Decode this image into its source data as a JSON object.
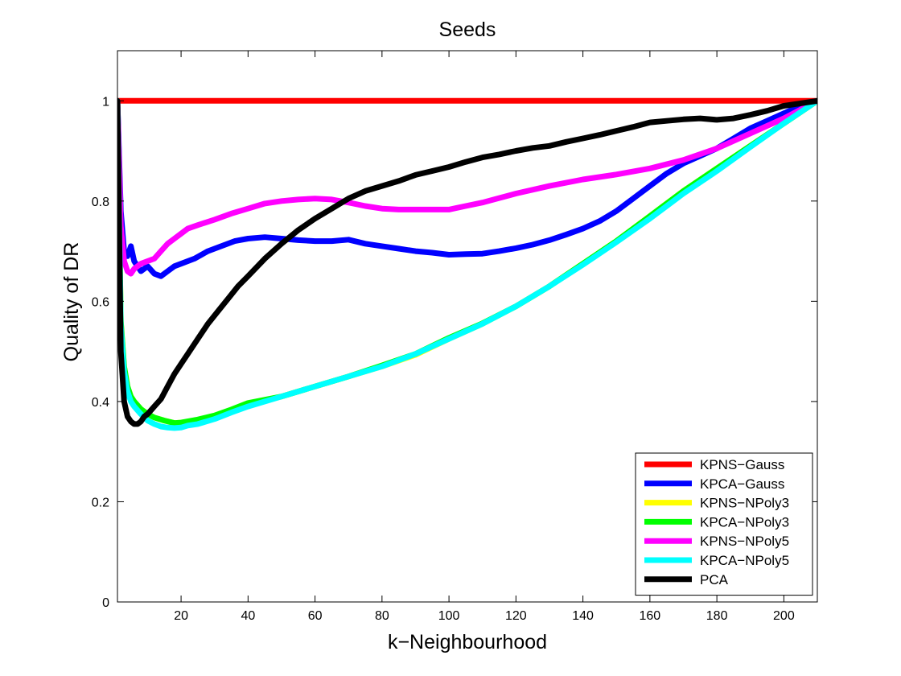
{
  "chart_data": {
    "type": "line",
    "title": "Seeds",
    "xlabel": "k−Neighbourhood",
    "ylabel": "Quality of DR",
    "xlim": [
      1,
      210
    ],
    "ylim": [
      0,
      1.1
    ],
    "xticks": [
      20,
      40,
      60,
      80,
      100,
      120,
      140,
      160,
      180,
      200
    ],
    "yticks": [
      0,
      0.2,
      0.4,
      0.6,
      0.8,
      1
    ],
    "grid": false,
    "legend_position": "bottom-right",
    "series": [
      {
        "name": "KPNS−Gauss",
        "color": "#ff0000",
        "x": [
          1,
          210
        ],
        "y": [
          1.0,
          1.0
        ]
      },
      {
        "name": "KPCA−Gauss",
        "color": "#0000ff",
        "x": [
          1,
          2,
          3,
          4,
          5,
          6,
          7,
          8,
          9,
          10,
          12,
          14,
          16,
          18,
          20,
          24,
          28,
          32,
          36,
          40,
          45,
          50,
          55,
          60,
          65,
          70,
          75,
          80,
          85,
          90,
          95,
          100,
          105,
          110,
          115,
          120,
          125,
          130,
          135,
          140,
          145,
          150,
          155,
          160,
          165,
          170,
          175,
          180,
          185,
          190,
          195,
          200,
          205,
          210
        ],
        "y": [
          1.0,
          0.78,
          0.7,
          0.69,
          0.71,
          0.68,
          0.67,
          0.66,
          0.665,
          0.67,
          0.655,
          0.65,
          0.66,
          0.67,
          0.675,
          0.685,
          0.7,
          0.71,
          0.72,
          0.725,
          0.728,
          0.725,
          0.722,
          0.72,
          0.72,
          0.723,
          0.715,
          0.71,
          0.705,
          0.7,
          0.697,
          0.693,
          0.694,
          0.695,
          0.7,
          0.706,
          0.713,
          0.722,
          0.733,
          0.745,
          0.76,
          0.78,
          0.805,
          0.83,
          0.855,
          0.875,
          0.89,
          0.905,
          0.925,
          0.945,
          0.96,
          0.975,
          0.99,
          1.0
        ]
      },
      {
        "name": "KPNS−NPoly3",
        "color": "#ffff00",
        "x": [
          1,
          2,
          3,
          4,
          5,
          6,
          8,
          10,
          12,
          15,
          18,
          20,
          25,
          30,
          35,
          40,
          50,
          60,
          70,
          80,
          90,
          100,
          110,
          120,
          130,
          140,
          150,
          160,
          170,
          180,
          190,
          200,
          210
        ],
        "y": [
          1.0,
          0.56,
          0.47,
          0.43,
          0.41,
          0.4,
          0.385,
          0.375,
          0.368,
          0.362,
          0.357,
          0.358,
          0.362,
          0.37,
          0.38,
          0.393,
          0.41,
          0.43,
          0.45,
          0.47,
          0.493,
          0.525,
          0.555,
          0.59,
          0.63,
          0.675,
          0.72,
          0.77,
          0.82,
          0.865,
          0.91,
          0.955,
          1.0
        ]
      },
      {
        "name": "KPCA−NPoly3",
        "color": "#00ff00",
        "x": [
          1,
          2,
          3,
          4,
          5,
          6,
          8,
          10,
          12,
          15,
          18,
          20,
          25,
          30,
          35,
          40,
          50,
          60,
          70,
          80,
          90,
          100,
          110,
          120,
          130,
          140,
          150,
          160,
          170,
          180,
          190,
          200,
          210
        ],
        "y": [
          1.0,
          0.56,
          0.47,
          0.43,
          0.41,
          0.4,
          0.385,
          0.375,
          0.368,
          0.362,
          0.357,
          0.358,
          0.364,
          0.372,
          0.384,
          0.397,
          0.41,
          0.43,
          0.45,
          0.472,
          0.495,
          0.527,
          0.556,
          0.59,
          0.63,
          0.675,
          0.72,
          0.77,
          0.82,
          0.865,
          0.91,
          0.955,
          1.0
        ]
      },
      {
        "name": "KPNS−NPoly5",
        "color": "#ff00ff",
        "x": [
          1,
          2,
          3,
          4,
          5,
          6,
          7,
          8,
          10,
          12,
          14,
          16,
          18,
          20,
          22,
          25,
          30,
          35,
          40,
          45,
          50,
          55,
          60,
          65,
          70,
          75,
          80,
          85,
          90,
          95,
          100,
          105,
          110,
          115,
          120,
          130,
          140,
          150,
          160,
          170,
          180,
          190,
          200,
          210
        ],
        "y": [
          1.0,
          0.75,
          0.68,
          0.66,
          0.655,
          0.665,
          0.67,
          0.675,
          0.68,
          0.685,
          0.7,
          0.715,
          0.725,
          0.735,
          0.745,
          0.752,
          0.763,
          0.775,
          0.785,
          0.795,
          0.8,
          0.803,
          0.805,
          0.803,
          0.797,
          0.79,
          0.785,
          0.783,
          0.783,
          0.783,
          0.783,
          0.79,
          0.797,
          0.806,
          0.815,
          0.83,
          0.843,
          0.853,
          0.865,
          0.882,
          0.905,
          0.935,
          0.965,
          1.0
        ]
      },
      {
        "name": "KPCA−NPoly5",
        "color": "#00ffff",
        "x": [
          1,
          2,
          3,
          4,
          5,
          6,
          8,
          10,
          12,
          14,
          16,
          18,
          20,
          22,
          25,
          30,
          35,
          40,
          50,
          60,
          70,
          80,
          90,
          100,
          110,
          120,
          130,
          140,
          150,
          160,
          170,
          180,
          190,
          200,
          210
        ],
        "y": [
          1.0,
          0.55,
          0.46,
          0.42,
          0.4,
          0.39,
          0.375,
          0.362,
          0.355,
          0.35,
          0.348,
          0.347,
          0.348,
          0.352,
          0.355,
          0.365,
          0.378,
          0.39,
          0.41,
          0.43,
          0.45,
          0.47,
          0.495,
          0.525,
          0.555,
          0.59,
          0.63,
          0.673,
          0.718,
          0.765,
          0.815,
          0.86,
          0.908,
          0.955,
          1.0
        ]
      },
      {
        "name": "PCA",
        "color": "#000000",
        "x": [
          1,
          2,
          3,
          4,
          5,
          6,
          7,
          8,
          9,
          10,
          12,
          14,
          16,
          18,
          20,
          22,
          25,
          28,
          31,
          34,
          37,
          40,
          45,
          50,
          55,
          60,
          65,
          70,
          75,
          80,
          85,
          90,
          95,
          100,
          105,
          110,
          115,
          120,
          125,
          130,
          135,
          140,
          145,
          150,
          155,
          160,
          165,
          170,
          175,
          180,
          185,
          190,
          195,
          200,
          205,
          210
        ],
        "y": [
          1.0,
          0.5,
          0.4,
          0.37,
          0.36,
          0.355,
          0.355,
          0.36,
          0.37,
          0.375,
          0.39,
          0.405,
          0.43,
          0.455,
          0.475,
          0.495,
          0.525,
          0.555,
          0.58,
          0.605,
          0.63,
          0.65,
          0.685,
          0.715,
          0.742,
          0.765,
          0.785,
          0.805,
          0.82,
          0.83,
          0.84,
          0.852,
          0.86,
          0.868,
          0.878,
          0.887,
          0.893,
          0.9,
          0.906,
          0.91,
          0.918,
          0.925,
          0.932,
          0.94,
          0.948,
          0.957,
          0.96,
          0.963,
          0.965,
          0.962,
          0.965,
          0.972,
          0.98,
          0.99,
          0.995,
          1.0
        ]
      }
    ]
  }
}
